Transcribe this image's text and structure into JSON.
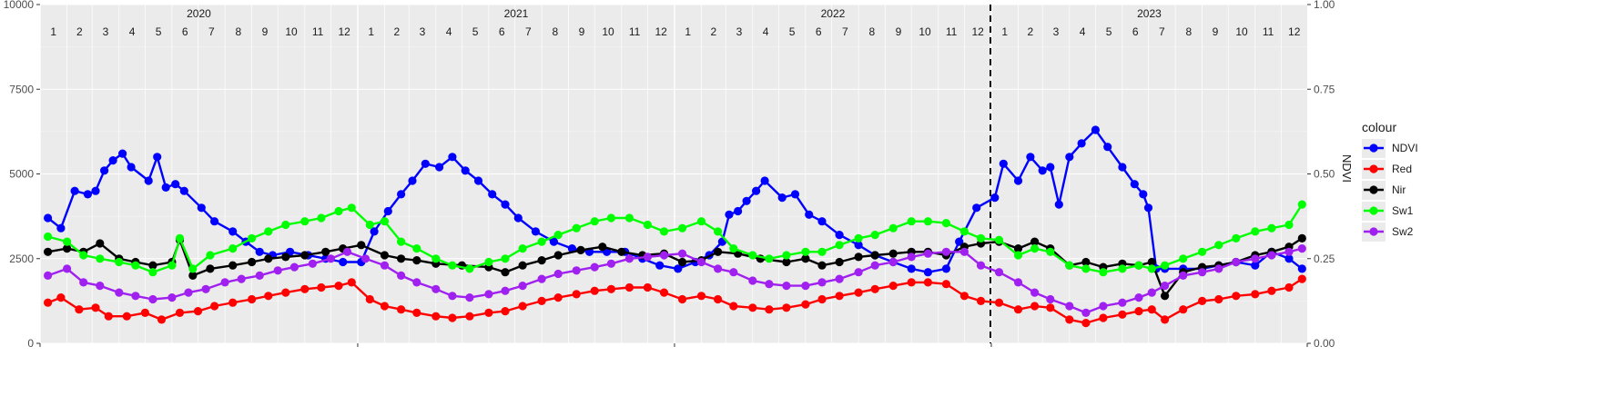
{
  "chart_data": {
    "type": "line",
    "x_start": "2020-01-01",
    "x_end": "2023-12-31",
    "years": [
      "2020",
      "2021",
      "2022",
      "2023"
    ],
    "months": [
      "1",
      "2",
      "3",
      "4",
      "5",
      "6",
      "7",
      "8",
      "9",
      "10",
      "11",
      "12"
    ],
    "ylim_left": [
      0,
      10000
    ],
    "yticks_left": [
      0,
      2500,
      5000,
      7500,
      10000
    ],
    "ylim_right": [
      0,
      1
    ],
    "yticks_right": [
      "0.00",
      "0.25",
      "0.50",
      "0.75",
      "1.00"
    ],
    "ylabel_right": "NDVI",
    "vline_date": "2022-12-31",
    "legend_title": "colour",
    "legend_position": "right",
    "grid": true,
    "series": [
      {
        "name": "NDVI",
        "color": "#0000ff",
        "axis": "right",
        "dates": [
          "2020-01-10",
          "2020-01-25",
          "2020-02-10",
          "2020-02-25",
          "2020-03-05",
          "2020-03-15",
          "2020-03-25",
          "2020-04-05",
          "2020-04-15",
          "2020-05-05",
          "2020-05-15",
          "2020-05-25",
          "2020-06-05",
          "2020-06-15",
          "2020-07-05",
          "2020-07-20",
          "2020-08-10",
          "2020-08-25",
          "2020-09-10",
          "2020-09-25",
          "2020-10-15",
          "2020-11-05",
          "2020-11-25",
          "2020-12-15",
          "2021-01-05",
          "2021-01-20",
          "2021-02-05",
          "2021-02-20",
          "2021-03-05",
          "2021-03-20",
          "2021-04-05",
          "2021-04-20",
          "2021-05-05",
          "2021-05-20",
          "2021-06-05",
          "2021-06-20",
          "2021-07-05",
          "2021-07-25",
          "2021-08-15",
          "2021-09-05",
          "2021-09-25",
          "2021-10-15",
          "2021-11-05",
          "2021-11-25",
          "2021-12-15",
          "2022-01-05",
          "2022-01-25",
          "2022-02-10",
          "2022-02-25",
          "2022-03-05",
          "2022-03-15",
          "2022-03-25",
          "2022-04-05",
          "2022-04-15",
          "2022-05-05",
          "2022-05-20",
          "2022-06-05",
          "2022-06-20",
          "2022-07-10",
          "2022-08-01",
          "2022-08-20",
          "2022-09-10",
          "2022-10-01",
          "2022-10-20",
          "2022-11-10",
          "2022-11-25",
          "2022-12-15",
          "2023-01-05",
          "2023-01-15",
          "2023-02-01",
          "2023-02-15",
          "2023-03-01",
          "2023-03-10",
          "2023-03-20",
          "2023-04-01",
          "2023-04-15",
          "2023-05-01",
          "2023-05-15",
          "2023-06-01",
          "2023-06-15",
          "2023-06-25",
          "2023-07-01",
          "2023-07-10",
          "2023-07-20",
          "2023-08-10",
          "2023-09-01",
          "2023-09-20",
          "2023-10-10",
          "2023-11-01",
          "2023-11-20",
          "2023-12-10",
          "2023-12-25"
        ],
        "values": [
          0.37,
          0.34,
          0.45,
          0.44,
          0.45,
          0.51,
          0.54,
          0.56,
          0.52,
          0.48,
          0.55,
          0.46,
          0.47,
          0.45,
          0.4,
          0.36,
          0.33,
          0.3,
          0.27,
          0.26,
          0.27,
          0.26,
          0.25,
          0.24,
          0.24,
          0.33,
          0.39,
          0.44,
          0.48,
          0.53,
          0.52,
          0.55,
          0.51,
          0.48,
          0.44,
          0.41,
          0.37,
          0.33,
          0.3,
          0.28,
          0.27,
          0.27,
          0.27,
          0.25,
          0.23,
          0.22,
          0.24,
          0.26,
          0.3,
          0.38,
          0.39,
          0.42,
          0.45,
          0.48,
          0.43,
          0.44,
          0.38,
          0.36,
          0.32,
          0.29,
          0.26,
          0.24,
          0.22,
          0.21,
          0.22,
          0.3,
          0.4,
          0.43,
          0.53,
          0.48,
          0.55,
          0.51,
          0.52,
          0.41,
          0.55,
          0.59,
          0.63,
          0.58,
          0.52,
          0.47,
          0.44,
          0.4,
          0.22,
          0.22,
          0.22,
          0.22,
          0.23,
          0.24,
          0.23,
          0.27,
          0.25,
          0.22
        ]
      },
      {
        "name": "Red",
        "color": "#ff0000",
        "axis": "left",
        "dates": [
          "2020-01-10",
          "2020-01-25",
          "2020-02-15",
          "2020-03-05",
          "2020-03-20",
          "2020-04-10",
          "2020-05-01",
          "2020-05-20",
          "2020-06-10",
          "2020-07-01",
          "2020-07-20",
          "2020-08-10",
          "2020-09-01",
          "2020-09-20",
          "2020-10-10",
          "2020-11-01",
          "2020-11-20",
          "2020-12-10",
          "2020-12-25",
          "2021-01-15",
          "2021-02-01",
          "2021-02-20",
          "2021-03-10",
          "2021-04-01",
          "2021-04-20",
          "2021-05-10",
          "2021-06-01",
          "2021-06-20",
          "2021-07-10",
          "2021-08-01",
          "2021-08-20",
          "2021-09-10",
          "2021-10-01",
          "2021-10-20",
          "2021-11-10",
          "2021-12-01",
          "2021-12-20",
          "2022-01-10",
          "2022-02-01",
          "2022-02-20",
          "2022-03-10",
          "2022-04-01",
          "2022-04-20",
          "2022-05-10",
          "2022-06-01",
          "2022-06-20",
          "2022-07-10",
          "2022-08-01",
          "2022-08-20",
          "2022-09-10",
          "2022-10-01",
          "2022-10-20",
          "2022-11-10",
          "2022-12-01",
          "2022-12-20",
          "2023-01-10",
          "2023-02-01",
          "2023-02-20",
          "2023-03-10",
          "2023-04-01",
          "2023-04-20",
          "2023-05-10",
          "2023-06-01",
          "2023-06-20",
          "2023-07-05",
          "2023-07-20",
          "2023-08-10",
          "2023-09-01",
          "2023-09-20",
          "2023-10-10",
          "2023-11-01",
          "2023-11-20",
          "2023-12-10",
          "2023-12-25"
        ],
        "values": [
          1200,
          1350,
          1000,
          1050,
          800,
          800,
          900,
          700,
          900,
          950,
          1100,
          1200,
          1300,
          1400,
          1500,
          1600,
          1650,
          1700,
          1800,
          1300,
          1100,
          1000,
          900,
          800,
          750,
          800,
          900,
          950,
          1100,
          1250,
          1350,
          1450,
          1550,
          1600,
          1650,
          1650,
          1500,
          1300,
          1400,
          1300,
          1100,
          1050,
          1000,
          1050,
          1150,
          1300,
          1400,
          1500,
          1600,
          1700,
          1800,
          1800,
          1750,
          1400,
          1250,
          1200,
          1000,
          1100,
          1050,
          700,
          600,
          750,
          850,
          950,
          1000,
          700,
          1000,
          1250,
          1300,
          1400,
          1450,
          1550,
          1650,
          1900
        ]
      },
      {
        "name": "Nir",
        "color": "#000000",
        "axis": "left",
        "dates": [
          "2020-01-10",
          "2020-02-01",
          "2020-02-20",
          "2020-03-10",
          "2020-04-01",
          "2020-04-20",
          "2020-05-10",
          "2020-06-01",
          "2020-06-10",
          "2020-06-25",
          "2020-07-15",
          "2020-08-10",
          "2020-09-01",
          "2020-09-20",
          "2020-10-10",
          "2020-11-01",
          "2020-11-25",
          "2020-12-15",
          "2021-01-05",
          "2021-02-01",
          "2021-02-20",
          "2021-03-10",
          "2021-04-01",
          "2021-05-01",
          "2021-06-01",
          "2021-06-20",
          "2021-07-10",
          "2021-08-01",
          "2021-08-20",
          "2021-09-15",
          "2021-10-10",
          "2021-11-01",
          "2021-11-25",
          "2021-12-20",
          "2022-01-10",
          "2022-02-01",
          "2022-02-20",
          "2022-03-15",
          "2022-04-10",
          "2022-05-10",
          "2022-06-01",
          "2022-06-20",
          "2022-07-10",
          "2022-08-01",
          "2022-08-20",
          "2022-09-10",
          "2022-10-01",
          "2022-10-20",
          "2022-11-10",
          "2022-12-01",
          "2022-12-20",
          "2023-01-10",
          "2023-02-01",
          "2023-02-20",
          "2023-03-10",
          "2023-04-01",
          "2023-04-20",
          "2023-05-10",
          "2023-06-01",
          "2023-06-20",
          "2023-07-05",
          "2023-07-20",
          "2023-08-10",
          "2023-09-01",
          "2023-09-20",
          "2023-10-10",
          "2023-11-01",
          "2023-11-20",
          "2023-12-10",
          "2023-12-25"
        ],
        "values": [
          2700,
          2800,
          2700,
          2950,
          2500,
          2400,
          2300,
          2400,
          3050,
          2000,
          2200,
          2300,
          2400,
          2500,
          2550,
          2600,
          2700,
          2800,
          2900,
          2600,
          2500,
          2450,
          2350,
          2300,
          2250,
          2100,
          2300,
          2450,
          2600,
          2750,
          2850,
          2700,
          2600,
          2650,
          2400,
          2450,
          2700,
          2650,
          2500,
          2400,
          2500,
          2300,
          2400,
          2550,
          2600,
          2650,
          2700,
          2700,
          2600,
          2850,
          2950,
          3000,
          2800,
          3000,
          2800,
          2300,
          2400,
          2250,
          2350,
          2300,
          2400,
          1400,
          2100,
          2250,
          2300,
          2400,
          2600,
          2700,
          2850,
          3100
        ]
      },
      {
        "name": "Sw1",
        "color": "#00ff00",
        "axis": "left",
        "dates": [
          "2020-01-10",
          "2020-02-01",
          "2020-02-20",
          "2020-03-10",
          "2020-04-01",
          "2020-04-20",
          "2020-05-10",
          "2020-06-01",
          "2020-06-10",
          "2020-06-25",
          "2020-07-15",
          "2020-08-10",
          "2020-09-01",
          "2020-09-20",
          "2020-10-10",
          "2020-11-01",
          "2020-11-20",
          "2020-12-10",
          "2020-12-25",
          "2021-01-15",
          "2021-02-01",
          "2021-02-20",
          "2021-03-10",
          "2021-04-01",
          "2021-04-20",
          "2021-05-10",
          "2021-06-01",
          "2021-06-20",
          "2021-07-10",
          "2021-08-01",
          "2021-08-20",
          "2021-09-10",
          "2021-10-01",
          "2021-10-20",
          "2021-11-10",
          "2021-12-01",
          "2021-12-20",
          "2022-01-10",
          "2022-02-01",
          "2022-02-20",
          "2022-03-10",
          "2022-04-01",
          "2022-04-20",
          "2022-05-10",
          "2022-06-01",
          "2022-06-20",
          "2022-07-10",
          "2022-08-01",
          "2022-08-20",
          "2022-09-10",
          "2022-10-01",
          "2022-10-20",
          "2022-11-10",
          "2022-12-01",
          "2022-12-20",
          "2023-01-10",
          "2023-02-01",
          "2023-02-20",
          "2023-03-10",
          "2023-04-01",
          "2023-04-20",
          "2023-05-10",
          "2023-06-01",
          "2023-06-20",
          "2023-07-05",
          "2023-07-20",
          "2023-08-10",
          "2023-09-01",
          "2023-09-20",
          "2023-10-10",
          "2023-11-01",
          "2023-11-20",
          "2023-12-10",
          "2023-12-25"
        ],
        "values": [
          3150,
          3000,
          2600,
          2500,
          2400,
          2300,
          2100,
          2300,
          3100,
          2200,
          2600,
          2800,
          3100,
          3300,
          3500,
          3600,
          3700,
          3900,
          4000,
          3500,
          3600,
          3000,
          2800,
          2500,
          2300,
          2200,
          2400,
          2500,
          2800,
          3000,
          3200,
          3400,
          3600,
          3700,
          3700,
          3500,
          3300,
          3400,
          3600,
          3300,
          2800,
          2600,
          2500,
          2600,
          2700,
          2700,
          2900,
          3100,
          3200,
          3400,
          3600,
          3600,
          3550,
          3300,
          3100,
          3050,
          2600,
          2800,
          2700,
          2300,
          2200,
          2100,
          2200,
          2300,
          2200,
          2300,
          2500,
          2700,
          2900,
          3100,
          3300,
          3400,
          3500,
          4100
        ]
      },
      {
        "name": "Sw2",
        "color": "#a020f0",
        "axis": "left",
        "dates": [
          "2020-01-10",
          "2020-02-01",
          "2020-02-20",
          "2020-03-10",
          "2020-04-01",
          "2020-04-20",
          "2020-05-10",
          "2020-06-01",
          "2020-06-20",
          "2020-07-10",
          "2020-08-01",
          "2020-08-20",
          "2020-09-10",
          "2020-10-01",
          "2020-10-20",
          "2020-11-10",
          "2020-12-01",
          "2020-12-20",
          "2021-01-10",
          "2021-02-01",
          "2021-02-20",
          "2021-03-10",
          "2021-04-01",
          "2021-04-20",
          "2021-05-10",
          "2021-06-01",
          "2021-06-20",
          "2021-07-10",
          "2021-08-01",
          "2021-08-20",
          "2021-09-10",
          "2021-10-01",
          "2021-10-20",
          "2021-11-10",
          "2021-12-01",
          "2021-12-20",
          "2022-01-10",
          "2022-02-01",
          "2022-02-20",
          "2022-03-10",
          "2022-04-01",
          "2022-04-20",
          "2022-05-10",
          "2022-06-01",
          "2022-06-20",
          "2022-07-10",
          "2022-08-01",
          "2022-08-20",
          "2022-09-10",
          "2022-10-01",
          "2022-10-20",
          "2022-11-10",
          "2022-12-01",
          "2022-12-20",
          "2023-01-10",
          "2023-02-01",
          "2023-02-20",
          "2023-03-10",
          "2023-04-01",
          "2023-04-20",
          "2023-05-10",
          "2023-06-01",
          "2023-06-20",
          "2023-07-05",
          "2023-07-20",
          "2023-08-10",
          "2023-09-01",
          "2023-09-20",
          "2023-10-10",
          "2023-11-01",
          "2023-11-20",
          "2023-12-10",
          "2023-12-25"
        ],
        "values": [
          2000,
          2200,
          1800,
          1700,
          1500,
          1400,
          1300,
          1350,
          1500,
          1600,
          1800,
          1900,
          2000,
          2150,
          2250,
          2350,
          2500,
          2700,
          2500,
          2300,
          2000,
          1800,
          1600,
          1400,
          1350,
          1450,
          1550,
          1700,
          1900,
          2050,
          2150,
          2250,
          2350,
          2500,
          2550,
          2600,
          2650,
          2400,
          2200,
          2100,
          1850,
          1750,
          1700,
          1700,
          1800,
          1900,
          2100,
          2300,
          2400,
          2550,
          2650,
          2700,
          2700,
          2300,
          2100,
          1800,
          1500,
          1300,
          1100,
          900,
          1100,
          1200,
          1350,
          1500,
          1700,
          2000,
          2100,
          2200,
          2400,
          2500,
          2600,
          2700,
          2800
        ]
      }
    ]
  }
}
